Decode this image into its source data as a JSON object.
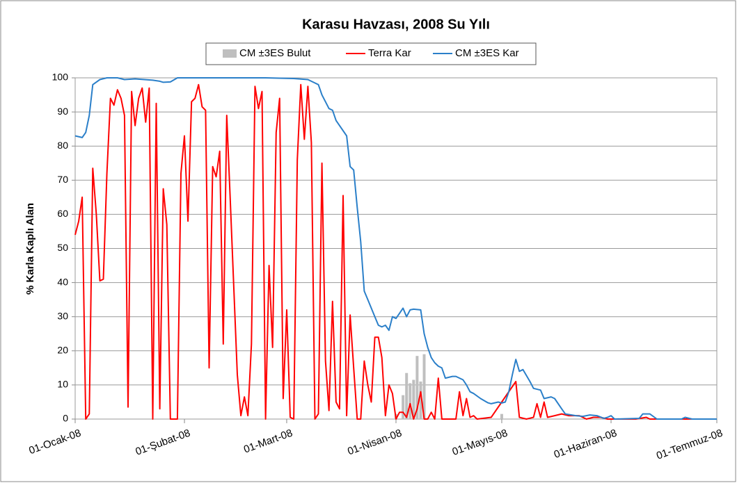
{
  "chart_data": {
    "type": "line",
    "title": "Karasu Havzası, 2008 Su Yılı",
    "y_label": "% Karla Kaplı Alan",
    "xlim": [
      0,
      182
    ],
    "xticks": [
      {
        "value": 0,
        "label": "01-Ocak-08"
      },
      {
        "value": 31,
        "label": "01-Şubat-08"
      },
      {
        "value": 60,
        "label": "01-Mart-08"
      },
      {
        "value": 91,
        "label": "01-Nisan-08"
      },
      {
        "value": 121,
        "label": "01-Mayıs-08"
      },
      {
        "value": 152,
        "label": "01-Haziran-08"
      },
      {
        "value": 182,
        "label": "01-Temmuz-08"
      }
    ],
    "ylim": [
      0,
      100
    ],
    "yticks": [
      0,
      10,
      20,
      30,
      40,
      50,
      60,
      70,
      80,
      90,
      100
    ],
    "grid": true,
    "legend": "top",
    "series": [
      {
        "name": "CM ±3ES Bulut",
        "type": "bar",
        "color": "#bfbfbf",
        "x": [
          91,
          93,
          94,
          95,
          96,
          97,
          98,
          99,
          121
        ],
        "values": [
          1.5,
          7,
          13.5,
          10.5,
          11.5,
          18.5,
          11,
          19,
          1.5
        ]
      },
      {
        "name": "Terra Kar",
        "type": "line",
        "color": "#ff0000",
        "x": [
          0,
          1,
          2,
          3,
          4,
          5,
          6,
          7,
          8,
          9,
          10,
          11,
          12,
          13,
          14,
          15,
          16,
          17,
          18,
          19,
          20,
          21,
          22,
          23,
          24,
          25,
          26,
          27,
          29,
          30,
          31,
          32,
          33,
          34,
          35,
          36,
          37,
          38,
          39,
          40,
          41,
          42,
          43,
          44,
          46,
          47,
          48,
          49,
          50,
          51,
          52,
          53,
          54,
          55,
          56,
          57,
          58,
          59,
          60,
          61,
          62,
          63,
          64,
          65,
          66,
          67,
          68,
          69,
          70,
          71,
          72,
          73,
          74,
          75,
          76,
          77,
          78,
          79,
          80,
          81,
          82,
          83,
          84,
          85,
          86,
          87,
          88,
          89,
          90,
          91,
          92,
          93,
          94,
          95,
          96,
          97,
          98,
          99,
          100,
          101,
          102,
          103,
          104,
          108,
          109,
          110,
          111,
          112,
          113,
          114,
          118,
          125,
          126,
          128,
          130,
          131,
          132,
          133,
          134,
          136,
          138,
          140,
          143,
          145,
          147,
          149,
          151,
          159,
          162,
          163,
          182
        ],
        "values": [
          54,
          58,
          65,
          0,
          1.5,
          73.5,
          60,
          40.5,
          41,
          72,
          94,
          92,
          96.5,
          94,
          89,
          3.5,
          96,
          86,
          94,
          97,
          87,
          97,
          0,
          92.5,
          3,
          67.5,
          57,
          0,
          0,
          72,
          83,
          58,
          93,
          94,
          98,
          91.5,
          90.5,
          15,
          74,
          71,
          78.5,
          22,
          89,
          64,
          13,
          1,
          6.5,
          1,
          22,
          97.5,
          91,
          96,
          0,
          45,
          21,
          84,
          94,
          6,
          32,
          0.5,
          0,
          76,
          98,
          82,
          97.5,
          81,
          0,
          1.5,
          75,
          17,
          2.5,
          34.5,
          5,
          3,
          65.5,
          1,
          30.5,
          15,
          0,
          0,
          17,
          10,
          5,
          24,
          24,
          18,
          1,
          10,
          7.5,
          0,
          2,
          2,
          0.5,
          4.5,
          0,
          3,
          8,
          0,
          0,
          2,
          0,
          12,
          0,
          0,
          8,
          1,
          6,
          0.5,
          1,
          0,
          0.5,
          11,
          0.5,
          0,
          0.5,
          4.5,
          0.5,
          5,
          0.5,
          1,
          1.5,
          1,
          1,
          0,
          0.5,
          0.5,
          0,
          0,
          0.5,
          0,
          0
        ]
      },
      {
        "name": "CM ±3ES Kar",
        "type": "line",
        "color": "#2a7fc9",
        "x": [
          0,
          2,
          3,
          4,
          5,
          7,
          9,
          12,
          14,
          17,
          22,
          24,
          25,
          27,
          29,
          54,
          62,
          66,
          68,
          69,
          70,
          71,
          72,
          73,
          74,
          75,
          77,
          78,
          79,
          80,
          81,
          82,
          83,
          85,
          86,
          87,
          88,
          89,
          90,
          91,
          92,
          93,
          94,
          95,
          96,
          98,
          99,
          100,
          101,
          102,
          103,
          104,
          105,
          107,
          108,
          110,
          111,
          112,
          113,
          115,
          117,
          118,
          120,
          121,
          122,
          123,
          124,
          125,
          126,
          127,
          129,
          130,
          132,
          133,
          135,
          136,
          138,
          139,
          142,
          144,
          146,
          148,
          150,
          151,
          152,
          153,
          160,
          161,
          163,
          165,
          172,
          173,
          175,
          182
        ],
        "values": [
          83,
          82.5,
          84,
          89,
          98,
          99.5,
          100,
          100,
          99.5,
          99.7,
          99.3,
          99,
          98.7,
          98.8,
          100,
          100,
          99.8,
          99.5,
          98.5,
          98,
          95,
          93,
          91,
          90.5,
          87.5,
          86,
          83,
          74,
          73,
          62,
          52,
          37.5,
          35,
          30,
          27.5,
          27,
          27.5,
          26,
          30,
          29.5,
          31,
          32.5,
          30,
          32,
          32.2,
          32,
          25,
          21,
          18,
          16.5,
          15.5,
          15,
          12,
          12.5,
          12.5,
          11.5,
          10,
          8,
          7.5,
          6,
          4.8,
          4.5,
          5,
          4.7,
          5,
          8,
          13,
          17.5,
          14,
          14.5,
          11,
          9,
          8.5,
          6,
          6.5,
          6,
          3,
          1.5,
          1,
          0.8,
          1.2,
          1,
          0.2,
          0.5,
          1,
          0,
          0.2,
          1.5,
          1.5,
          0,
          0,
          0.5,
          0,
          0
        ]
      }
    ]
  }
}
